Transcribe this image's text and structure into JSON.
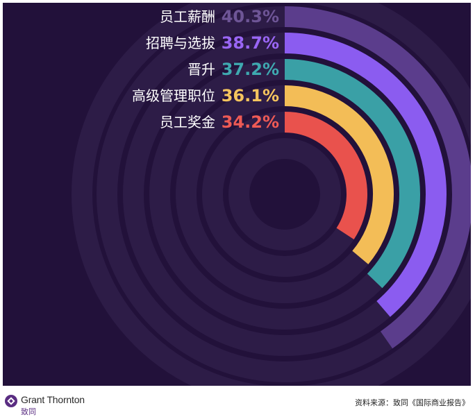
{
  "chart_data": {
    "type": "radial-bar",
    "unit": "%",
    "max": 100,
    "categories": [
      "员工薪酬",
      "招聘与选拔",
      "晋升",
      "高级管理职位",
      "员工奖金"
    ],
    "values": [
      40.3,
      38.7,
      37.2,
      36.1,
      34.2
    ],
    "value_labels": [
      "40.3%",
      "38.7%",
      "37.2%",
      "36.1%",
      "34.2%"
    ],
    "colors": [
      "#5b3d8c",
      "#8b5cf0",
      "#3aa0a6",
      "#f3bd57",
      "#e9524d"
    ],
    "value_colors": [
      "#6e5596",
      "#9a66f5",
      "#3fa9b0",
      "#f5c45e",
      "#ee5a55"
    ]
  },
  "footer": {
    "logo_name": "Grant Thornton",
    "logo_cn": "致同",
    "source": "资料来源：致同《国际商业报告》"
  },
  "colors": {
    "panel_bg": "#22113a",
    "track": "#2d1c47"
  }
}
